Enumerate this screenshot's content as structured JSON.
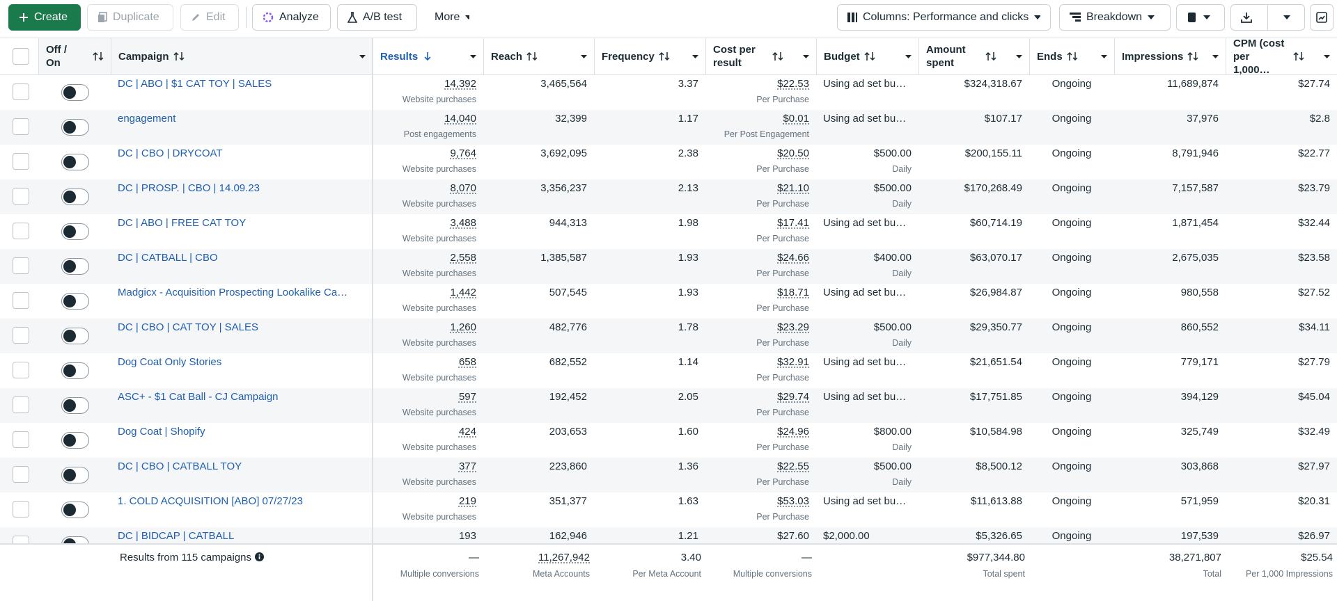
{
  "toolbar": {
    "create": "Create",
    "duplicate": "Duplicate",
    "edit": "Edit",
    "analyze": "Analyze",
    "ab_test": "A/B test",
    "more": "More",
    "columns": "Columns: Performance and clicks",
    "breakdown": "Breakdown"
  },
  "table": {
    "columns": [
      "Off / On",
      "Campaign",
      "Results",
      "Reach",
      "Frequency",
      "Cost per result",
      "Budget",
      "Amount spent",
      "Ends",
      "Impressions",
      "CPM (cost per 1,000…"
    ],
    "rows": [
      {
        "campaign": "DC | ABO | $1 CAT TOY | SALES",
        "results": "14,392",
        "results_type": "Website purchases",
        "reach": "3,465,564",
        "frequency": "3.37",
        "cost": "$22.53",
        "cost_type": "Per Purchase",
        "budget": "Using ad set bu…",
        "amount_spent": "$324,318.67",
        "ends": "Ongoing",
        "impressions": "11,689,874",
        "cpm": "$27.74"
      },
      {
        "campaign": "engagement",
        "results": "14,040",
        "results_type": "Post engagements",
        "reach": "32,399",
        "frequency": "1.17",
        "cost": "$0.01",
        "cost_type": "Per Post Engagement",
        "budget": "Using ad set bu…",
        "amount_spent": "$107.17",
        "ends": "Ongoing",
        "impressions": "37,976",
        "cpm": "$2.8"
      },
      {
        "campaign": "DC | CBO | DRYCOAT",
        "results": "9,764",
        "results_type": "Website purchases",
        "reach": "3,692,095",
        "frequency": "2.38",
        "cost": "$20.50",
        "cost_type": "Per Purchase",
        "budget": "$500.00",
        "budget_type": "Daily",
        "amount_spent": "$200,155.11",
        "ends": "Ongoing",
        "impressions": "8,791,946",
        "cpm": "$22.77"
      },
      {
        "campaign": "DC | PROSP. | CBO | 14.09.23",
        "results": "8,070",
        "results_type": "Website purchases",
        "reach": "3,356,237",
        "frequency": "2.13",
        "cost": "$21.10",
        "cost_type": "Per Purchase",
        "budget": "$500.00",
        "budget_type": "Daily",
        "amount_spent": "$170,268.49",
        "ends": "Ongoing",
        "impressions": "7,157,587",
        "cpm": "$23.79"
      },
      {
        "campaign": "DC | ABO | FREE CAT TOY",
        "results": "3,488",
        "results_type": "Website purchases",
        "reach": "944,313",
        "frequency": "1.98",
        "cost": "$17.41",
        "cost_type": "Per Purchase",
        "budget": "Using ad set bu…",
        "amount_spent": "$60,714.19",
        "ends": "Ongoing",
        "impressions": "1,871,454",
        "cpm": "$32.44"
      },
      {
        "campaign": "DC | CATBALL | CBO",
        "results": "2,558",
        "results_type": "Website purchases",
        "reach": "1,385,587",
        "frequency": "1.93",
        "cost": "$24.66",
        "cost_type": "Per Purchase",
        "budget": "$400.00",
        "budget_type": "Daily",
        "amount_spent": "$63,070.17",
        "ends": "Ongoing",
        "impressions": "2,675,035",
        "cpm": "$23.58"
      },
      {
        "campaign": "Madgicx - Acquisition Prospecting Lookalike Ca…",
        "results": "1,442",
        "results_type": "Website purchases",
        "reach": "507,545",
        "frequency": "1.93",
        "cost": "$18.71",
        "cost_type": "Per Purchase",
        "budget": "Using ad set bu…",
        "amount_spent": "$26,984.87",
        "ends": "Ongoing",
        "impressions": "980,558",
        "cpm": "$27.52"
      },
      {
        "campaign": "DC | CBO | CAT TOY | SALES",
        "results": "1,260",
        "results_type": "Website purchases",
        "reach": "482,776",
        "frequency": "1.78",
        "cost": "$23.29",
        "cost_type": "Per Purchase",
        "budget": "$500.00",
        "budget_type": "Daily",
        "amount_spent": "$29,350.77",
        "ends": "Ongoing",
        "impressions": "860,552",
        "cpm": "$34.11"
      },
      {
        "campaign": "Dog Coat Only Stories",
        "results": "658",
        "results_type": "Website purchases",
        "reach": "682,552",
        "frequency": "1.14",
        "cost": "$32.91",
        "cost_type": "Per Purchase",
        "budget": "Using ad set bu…",
        "amount_spent": "$21,651.54",
        "ends": "Ongoing",
        "impressions": "779,171",
        "cpm": "$27.79"
      },
      {
        "campaign": "ASC+ - $1 Cat Ball - CJ Campaign",
        "results": "597",
        "results_type": "Website purchases",
        "reach": "192,452",
        "frequency": "2.05",
        "cost": "$29.74",
        "cost_type": "Per Purchase",
        "budget": "Using ad set bu…",
        "amount_spent": "$17,751.85",
        "ends": "Ongoing",
        "impressions": "394,129",
        "cpm": "$45.04"
      },
      {
        "campaign": "Dog Coat | Shopify",
        "results": "424",
        "results_type": "Website purchases",
        "reach": "203,653",
        "frequency": "1.60",
        "cost": "$24.96",
        "cost_type": "Per Purchase",
        "budget": "$800.00",
        "budget_type": "Daily",
        "amount_spent": "$10,584.98",
        "ends": "Ongoing",
        "impressions": "325,749",
        "cpm": "$32.49"
      },
      {
        "campaign": "DC | CBO | CATBALL TOY",
        "results": "377",
        "results_type": "Website purchases",
        "reach": "223,860",
        "frequency": "1.36",
        "cost": "$22.55",
        "cost_type": "Per Purchase",
        "budget": "$500.00",
        "budget_type": "Daily",
        "amount_spent": "$8,500.12",
        "ends": "Ongoing",
        "impressions": "303,868",
        "cpm": "$27.97"
      },
      {
        "campaign": "1. COLD ACQUISITION [ABO] 07/27/23",
        "results": "219",
        "results_type": "Website purchases",
        "reach": "351,377",
        "frequency": "1.63",
        "cost": "$53.03",
        "cost_type": "Per Purchase",
        "budget": "Using ad set bu…",
        "amount_spent": "$11,613.88",
        "ends": "Ongoing",
        "impressions": "571,959",
        "cpm": "$20.31"
      },
      {
        "campaign": "DC | BIDCAP | CATBALL",
        "results": "193",
        "reach": "162,946",
        "frequency": "1.21",
        "cost": "$27.60",
        "budget": "$2,000.00",
        "amount_spent": "$5,326.65",
        "ends": "Ongoing",
        "impressions": "197,539",
        "cpm": "$26.97"
      }
    ]
  },
  "footer": {
    "label": "Results from 115 campaigns",
    "results": "—",
    "results_note": "Multiple conversions",
    "reach": "11,267,942",
    "reach_note": "Meta Accounts",
    "frequency": "3.40",
    "frequency_note": "Per Meta Account",
    "cost": "—",
    "cost_note": "Multiple conversions",
    "amount_spent": "$977,344.80",
    "amount_note": "Total spent",
    "impressions": "38,271,807",
    "impressions_note": "Total",
    "cpm": "$25.54",
    "cpm_note": "Per 1,000 Impressions"
  }
}
